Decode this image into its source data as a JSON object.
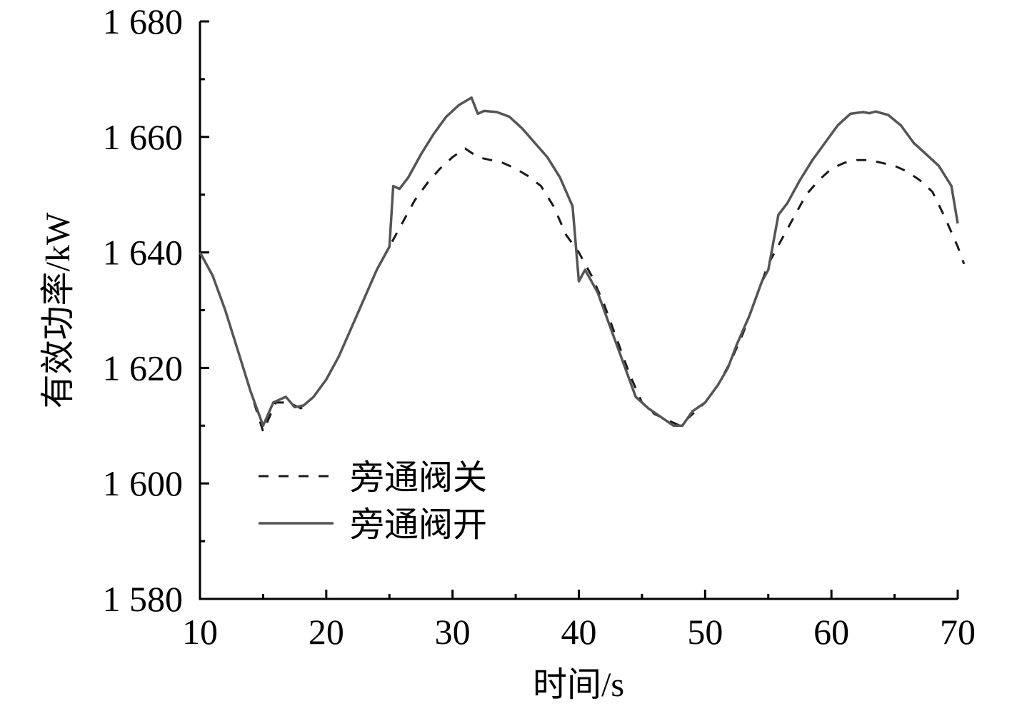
{
  "chart_data": {
    "type": "line",
    "title": "",
    "xlabel": "时间/s",
    "ylabel": "有效功率/kW",
    "xlim": [
      10,
      70
    ],
    "ylim": [
      1580,
      1680
    ],
    "x_ticks": [
      10,
      20,
      30,
      40,
      50,
      60,
      70
    ],
    "y_ticks": [
      1580,
      1600,
      1620,
      1640,
      1660,
      1680
    ],
    "x_tick_labels": [
      "10",
      "20",
      "30",
      "40",
      "50",
      "60",
      "70"
    ],
    "y_tick_labels": [
      "1 580",
      "1 600",
      "1 620",
      "1 640",
      "1 660",
      "1 680"
    ],
    "grid": false,
    "legend_position": "lower-left",
    "series": [
      {
        "name": "旁通阀关",
        "style": "dashed",
        "color": "#1a1a1a",
        "x": [
          10,
          11,
          12,
          13,
          14,
          15,
          16,
          17,
          18,
          19,
          20,
          21,
          22,
          23,
          24,
          25,
          26,
          27,
          28,
          29,
          30,
          31,
          32,
          33,
          34,
          35,
          36,
          37,
          38,
          39,
          40,
          41,
          42,
          43,
          44,
          45,
          46,
          47,
          48,
          49,
          50,
          51,
          52,
          53,
          54,
          55,
          56,
          57,
          58,
          59,
          60,
          61,
          62,
          63,
          64,
          65,
          66,
          67,
          68,
          69,
          70,
          70.5
        ],
        "y": [
          1640,
          1636,
          1630,
          1623,
          1616,
          1609,
          1614,
          1614,
          1613,
          1615,
          1618,
          1622,
          1627,
          1632,
          1637,
          1641,
          1645,
          1649,
          1652,
          1654.5,
          1656.5,
          1658,
          1656.5,
          1656,
          1655.5,
          1654.5,
          1653.2,
          1651.5,
          1648,
          1643,
          1640,
          1636,
          1631,
          1625,
          1619,
          1614,
          1612,
          1611,
          1610,
          1612,
          1614,
          1617,
          1621,
          1626,
          1632,
          1638,
          1642,
          1646,
          1650,
          1652.5,
          1654.5,
          1655.5,
          1656,
          1656,
          1655.5,
          1655,
          1654,
          1652.5,
          1650.5,
          1646,
          1641,
          1638
        ]
      },
      {
        "name": "旁通阀开",
        "style": "solid",
        "color": "#555555",
        "x": [
          10,
          11,
          12,
          13,
          14,
          15,
          15.8,
          16.8,
          17.5,
          18.2,
          19,
          20,
          21,
          22,
          23,
          24,
          25,
          25.3,
          25.8,
          26.5,
          27.5,
          28.5,
          29.5,
          30.5,
          31.5,
          32,
          32.5,
          33.5,
          34.5,
          35.5,
          36.5,
          37.5,
          38.5,
          39.5,
          40,
          40.5,
          41.5,
          42.5,
          43.5,
          44.5,
          45.5,
          46.5,
          47.5,
          48.2,
          49,
          50,
          51,
          51.8,
          52.5,
          53.5,
          54.5,
          55,
          55.8,
          56.5,
          57.5,
          58.5,
          59.5,
          60.5,
          61.5,
          62.5,
          63,
          63.5,
          64.5,
          65.5,
          66.5,
          67.5,
          68.5,
          69.5,
          70
        ],
        "y": [
          1640,
          1636,
          1630,
          1623,
          1616,
          1610,
          1614,
          1615,
          1613.2,
          1613.5,
          1615,
          1618,
          1622,
          1627,
          1632,
          1637,
          1641,
          1651.5,
          1651,
          1653,
          1657,
          1660.5,
          1663.5,
          1665.5,
          1666.8,
          1664,
          1664.5,
          1664.3,
          1663.5,
          1661.5,
          1659,
          1656.5,
          1653,
          1648,
          1635,
          1637,
          1633,
          1627,
          1621,
          1615,
          1613,
          1611.5,
          1610,
          1610,
          1612.5,
          1614,
          1617,
          1620,
          1624,
          1629,
          1635,
          1637,
          1646.5,
          1648.5,
          1652.5,
          1656,
          1659,
          1662,
          1664,
          1664.3,
          1664.1,
          1664.4,
          1663.8,
          1662,
          1659,
          1657,
          1655,
          1651.5,
          1645
        ]
      }
    ]
  }
}
